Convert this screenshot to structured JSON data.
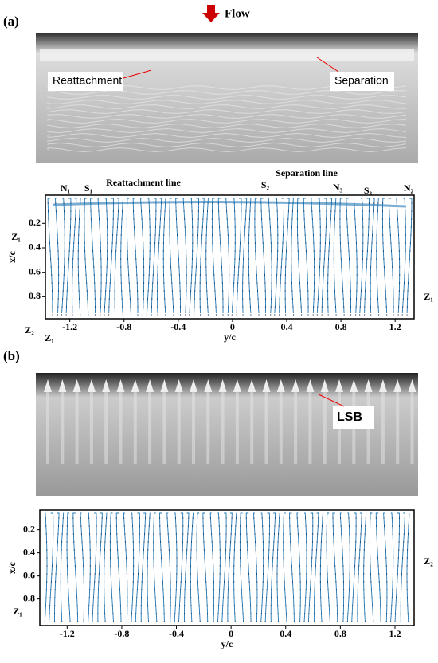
{
  "figure": {
    "flow_label": "Flow",
    "panels": [
      {
        "label": "(a)",
        "photo_annotations": [
          "Reattachment",
          "Separation"
        ]
      },
      {
        "label": "(b)",
        "photo_annotations": [
          "LSB"
        ]
      }
    ]
  },
  "chart_data": [
    {
      "type": "streamline",
      "xlabel": "y/c",
      "ylabel": "x/c",
      "xlim": [
        -1.38,
        1.34
      ],
      "ylim": [
        -0.03,
        0.98
      ],
      "xticks": [
        -1.2,
        -0.8,
        -0.4,
        0,
        0.4,
        0.8,
        1.2
      ],
      "yticks": [
        0.2,
        0.4,
        0.6,
        0.8
      ],
      "color": "#1f77b4",
      "annotations": [
        "N₁",
        "S₁",
        "Reattachment line",
        "S₂",
        "Separation line",
        "N₃",
        "S₃",
        "N₂",
        "Z₁",
        "Z₂",
        "Z₁",
        "Z₁"
      ]
    },
    {
      "type": "streamline",
      "xlabel": "y/c",
      "ylabel": "x/c",
      "xlim": [
        -1.4,
        1.34
      ],
      "ylim": [
        0.03,
        1.03
      ],
      "xticks": [
        -1.2,
        -0.8,
        -0.4,
        0,
        0.4,
        0.8,
        1.2
      ],
      "yticks": [
        0.2,
        0.4,
        0.6,
        0.8
      ],
      "color": "#1f77b4",
      "annotations": [
        "Z₂",
        "Z₁"
      ]
    }
  ]
}
